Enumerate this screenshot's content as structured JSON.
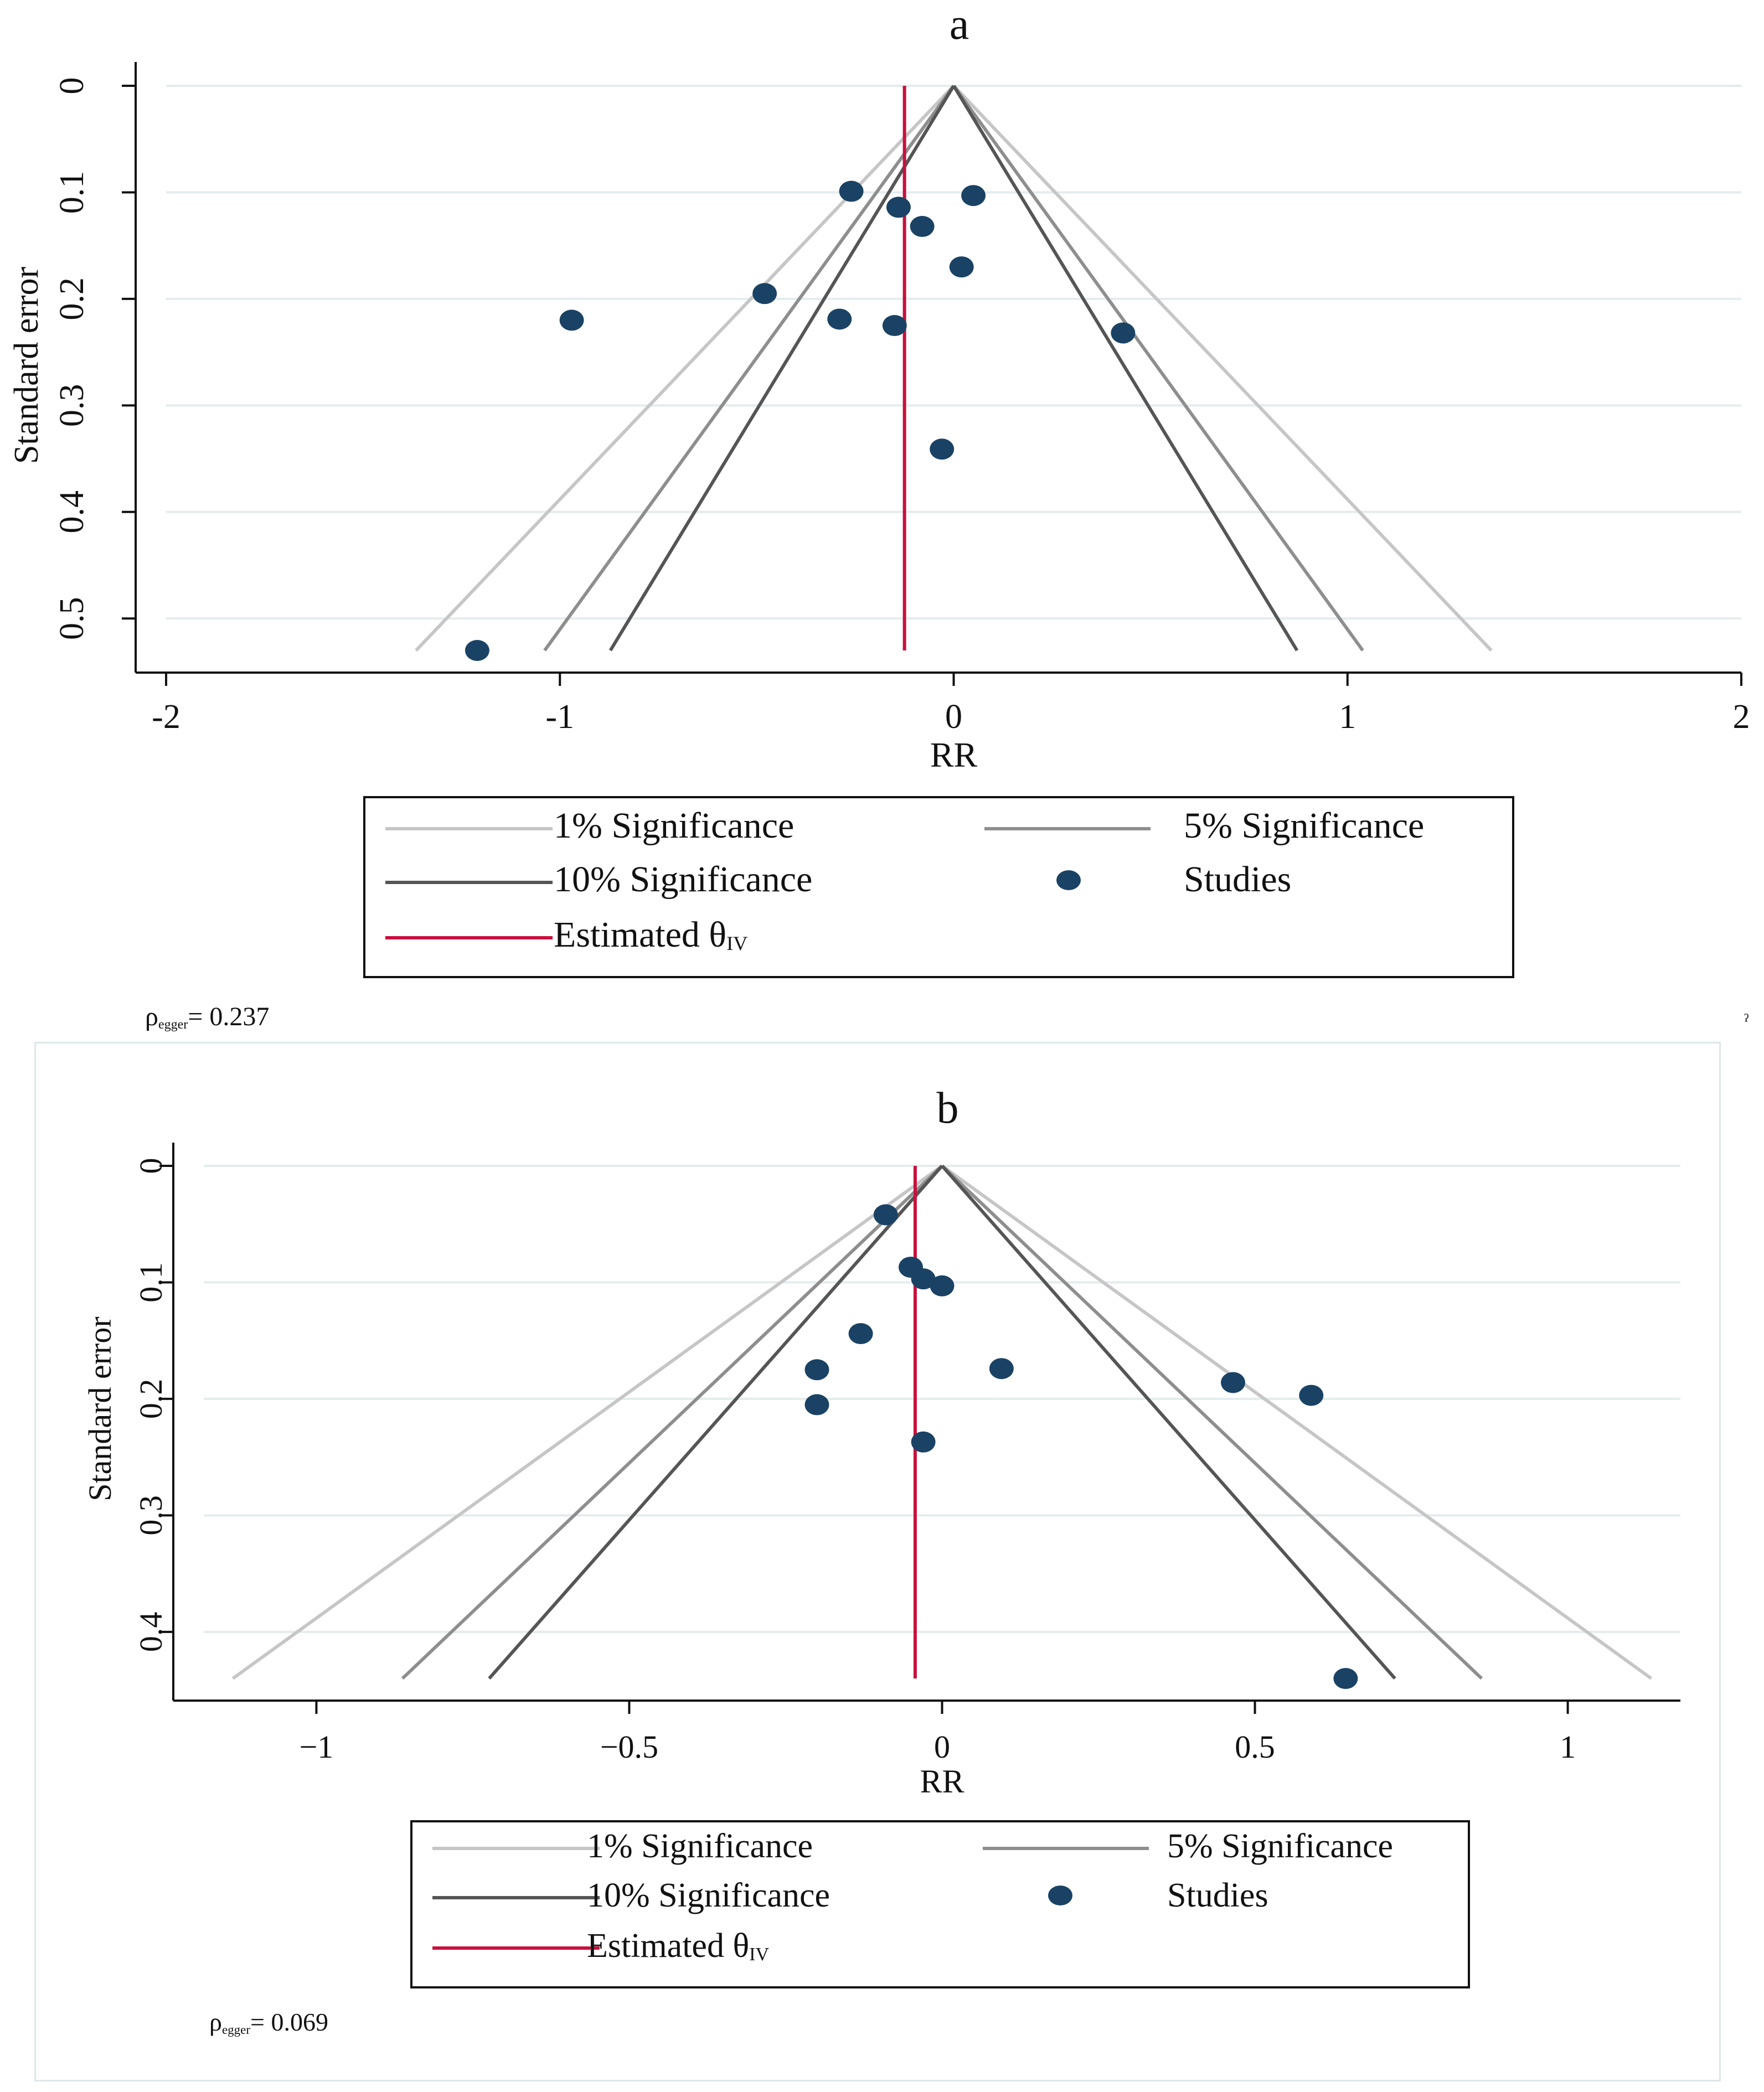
{
  "colors": {
    "sig1": "#c6c6c6",
    "sig5": "#8e8e8e",
    "sig10": "#555555",
    "estimate": "#c8103e",
    "study": "#1a4264",
    "grid": "#e3ecee",
    "axis": "#111111",
    "title": "#1a3358"
  },
  "chart_data": [
    {
      "type": "scatter",
      "subtype": "funnel",
      "title": "a",
      "xlabel": "RR",
      "ylabel": "Standard error",
      "xlim": [
        -2,
        2
      ],
      "ylim": [
        0,
        0.53
      ],
      "xticks": [
        -2,
        -1,
        0,
        1,
        2
      ],
      "xtick_labels": [
        "-2",
        "-1",
        "0",
        "1",
        "2"
      ],
      "yticks": [
        0,
        0.1,
        0.2,
        0.3,
        0.4,
        0.5
      ],
      "ytick_labels": [
        "0",
        "0.1",
        "0.2",
        "0.3",
        "0.4",
        "0.5"
      ],
      "funnel_center": 0,
      "funnel_max_se": 0.53,
      "significance": [
        {
          "name": "1% Significance",
          "z": 2.576,
          "color_key": "sig1"
        },
        {
          "name": "5% Significance",
          "z": 1.96,
          "color_key": "sig5"
        },
        {
          "name": "10% Significance",
          "z": 1.645,
          "color_key": "sig10"
        }
      ],
      "estimate": -0.125,
      "studies": [
        {
          "rr": -0.26,
          "se": 0.099
        },
        {
          "rr": -0.14,
          "se": 0.114
        },
        {
          "rr": 0.05,
          "se": 0.103
        },
        {
          "rr": -0.08,
          "se": 0.132
        },
        {
          "rr": 0.02,
          "se": 0.17
        },
        {
          "rr": -0.48,
          "se": 0.195
        },
        {
          "rr": -0.97,
          "se": 0.22
        },
        {
          "rr": -0.29,
          "se": 0.219
        },
        {
          "rr": -0.15,
          "se": 0.225
        },
        {
          "rr": 0.43,
          "se": 0.232
        },
        {
          "rr": -0.03,
          "se": 0.341
        },
        {
          "rr": -1.21,
          "se": 0.53
        }
      ],
      "legend": {
        "sig1": "1% Significance",
        "sig5": "5% Significance",
        "sig10": "10% Significance",
        "studies": "Studies",
        "estimate_main": "Estimated θ",
        "estimate_sub": "IV"
      },
      "note": {
        "rho": "ρ",
        "sub": "egger",
        "rest": "= 0.237"
      }
    },
    {
      "type": "scatter",
      "subtype": "funnel",
      "title": "b",
      "xlabel": "RR",
      "ylabel": "Standard error",
      "xlim": [
        -1.18,
        1.18
      ],
      "ylim": [
        0,
        0.44
      ],
      "xticks": [
        -1,
        -0.5,
        0,
        0.5,
        1
      ],
      "xtick_labels": [
        "−1",
        "−0.5",
        "0",
        "0.5",
        "1"
      ],
      "yticks": [
        0,
        0.1,
        0.2,
        0.3,
        0.4
      ],
      "ytick_labels": [
        "0",
        "0.1",
        "0.2",
        "0.3",
        "0.4"
      ],
      "funnel_center": 0,
      "funnel_max_se": 0.44,
      "significance": [
        {
          "name": "1% Significance",
          "z": 2.576,
          "color_key": "sig1"
        },
        {
          "name": "5% Significance",
          "z": 1.96,
          "color_key": "sig5"
        },
        {
          "name": "10% Significance",
          "z": 1.645,
          "color_key": "sig10"
        }
      ],
      "estimate": -0.043,
      "studies": [
        {
          "rr": -0.09,
          "se": 0.042
        },
        {
          "rr": -0.05,
          "se": 0.087
        },
        {
          "rr": -0.03,
          "se": 0.097
        },
        {
          "rr": 0.0,
          "se": 0.103
        },
        {
          "rr": -0.13,
          "se": 0.144
        },
        {
          "rr": -0.2,
          "se": 0.175
        },
        {
          "rr": 0.095,
          "se": 0.174
        },
        {
          "rr": 0.465,
          "se": 0.186
        },
        {
          "rr": 0.59,
          "se": 0.197
        },
        {
          "rr": -0.2,
          "se": 0.205
        },
        {
          "rr": -0.03,
          "se": 0.237
        },
        {
          "rr": 0.645,
          "se": 0.44
        }
      ],
      "legend": {
        "sig1": "1% Significance",
        "sig5": "5% Significance",
        "sig10": "10% Significance",
        "studies": "Studies",
        "estimate_main": "Estimated θ",
        "estimate_sub": "IV"
      },
      "note": {
        "rho": "ρ",
        "sub": "egger",
        "rest": "= 0.069"
      }
    }
  ],
  "stray_mark": "ˀ"
}
